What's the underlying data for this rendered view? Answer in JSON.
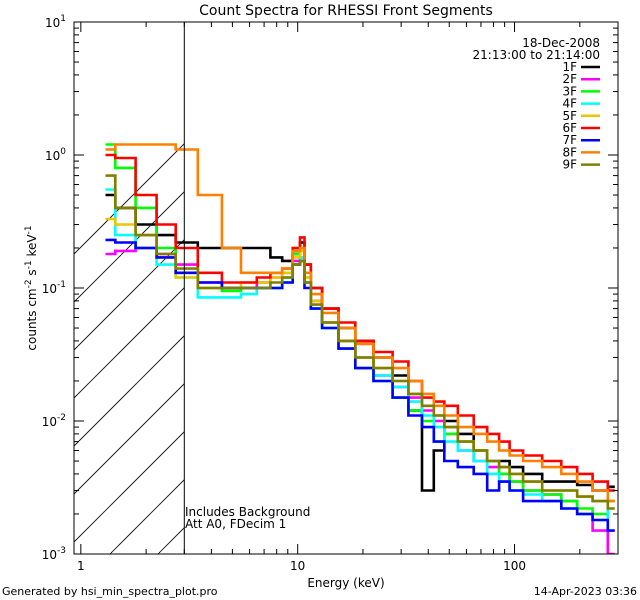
{
  "chart_data": {
    "type": "line",
    "title": "Count Spectra for RHESSI Front Segments",
    "xlabel": "Energy (keV)",
    "ylabel_main": "counts cm",
    "ylabel_exp1": "-2",
    "ylabel_mid": " s",
    "ylabel_exp2": "-1",
    "ylabel_unit": " keV",
    "ylabel_exp3": "-1",
    "xscale": "log",
    "yscale": "log",
    "xlim": [
      0.93,
      300
    ],
    "ylim": [
      0.001,
      10
    ],
    "x_ticks": [
      {
        "value": 1,
        "label": "1"
      },
      {
        "value": 10,
        "label": "10"
      },
      {
        "value": 100,
        "label": "100"
      }
    ],
    "y_ticks": [
      {
        "value": 0.001,
        "base": "10",
        "exp": "-3"
      },
      {
        "value": 0.01,
        "base": "10",
        "exp": "-2"
      },
      {
        "value": 0.1,
        "base": "10",
        "exp": "-1"
      },
      {
        "value": 1,
        "base": "10",
        "exp": "0"
      },
      {
        "value": 10,
        "base": "10",
        "exp": "1"
      }
    ],
    "legend_position": "top-right",
    "date": "18-Dec-2008",
    "time_range": "21:13:00 to 21:14:00",
    "excluded_region_keV": [
      0.93,
      3
    ],
    "annotation_line1": "Includes Background",
    "annotation_line2": "Att A0, FDecim 1",
    "series": [
      {
        "name": "1F",
        "color": "#000000",
        "x": [
          1.3,
          1.6,
          2,
          2.5,
          3,
          4,
          5,
          6,
          7,
          8,
          9,
          10,
          10.5,
          11,
          12,
          14,
          17,
          20,
          25,
          30,
          35,
          40,
          45,
          50,
          60,
          70,
          80,
          90,
          100,
          120,
          150,
          180,
          210,
          250,
          290
        ],
        "y": [
          0.5,
          0.4,
          0.3,
          0.25,
          0.22,
          0.2,
          0.2,
          0.2,
          0.2,
          0.17,
          0.16,
          0.18,
          0.22,
          0.15,
          0.1,
          0.07,
          0.05,
          0.04,
          0.03,
          0.022,
          0.012,
          0.003,
          0.006,
          0.01,
          0.008,
          0.006,
          0.005,
          0.005,
          0.0045,
          0.004,
          0.0035,
          0.0035,
          0.0033,
          0.003,
          0.0032
        ]
      },
      {
        "name": "2F",
        "color": "#ff00ff",
        "x": [
          1.3,
          1.6,
          2,
          2.5,
          3,
          4,
          5,
          6,
          7,
          8,
          9,
          10,
          10.5,
          11,
          12,
          14,
          17,
          20,
          25,
          30,
          35,
          40,
          45,
          50,
          60,
          70,
          80,
          90,
          100,
          120,
          150,
          180,
          210,
          250,
          290
        ],
        "y": [
          0.18,
          0.19,
          0.2,
          0.18,
          0.15,
          0.11,
          0.1,
          0.1,
          0.11,
          0.12,
          0.13,
          0.16,
          0.17,
          0.11,
          0.08,
          0.055,
          0.04,
          0.03,
          0.022,
          0.018,
          0.015,
          0.012,
          0.01,
          0.008,
          0.006,
          0.005,
          0.0045,
          0.004,
          0.0035,
          0.003,
          0.0028,
          0.0025,
          0.002,
          0.0015,
          0.001
        ]
      },
      {
        "name": "3F",
        "color": "#00ff00",
        "x": [
          1.3,
          1.6,
          2,
          2.5,
          3,
          4,
          5,
          6,
          7,
          8,
          9,
          10,
          10.5,
          11,
          12,
          14,
          17,
          20,
          25,
          30,
          35,
          40,
          45,
          50,
          60,
          70,
          80,
          90,
          100,
          120,
          150,
          180,
          210,
          250,
          290
        ],
        "y": [
          1.2,
          0.8,
          0.4,
          0.2,
          0.13,
          0.1,
          0.095,
          0.1,
          0.1,
          0.1,
          0.12,
          0.18,
          0.2,
          0.12,
          0.07,
          0.05,
          0.035,
          0.025,
          0.02,
          0.015,
          0.012,
          0.01,
          0.007,
          0.008,
          0.007,
          0.006,
          0.005,
          0.004,
          0.0035,
          0.003,
          0.0028,
          0.0025,
          0.0022,
          0.002,
          0.0025
        ]
      },
      {
        "name": "4F",
        "color": "#00ffff",
        "x": [
          1.3,
          1.6,
          2,
          2.5,
          3,
          4,
          5,
          6,
          7,
          8,
          9,
          10,
          10.5,
          11,
          12,
          14,
          17,
          20,
          25,
          30,
          35,
          40,
          45,
          50,
          60,
          70,
          80,
          90,
          100,
          120,
          150,
          180,
          210,
          250,
          290
        ],
        "y": [
          0.55,
          0.25,
          0.2,
          0.15,
          0.12,
          0.085,
          0.085,
          0.09,
          0.1,
          0.1,
          0.11,
          0.15,
          0.17,
          0.11,
          0.07,
          0.05,
          0.04,
          0.03,
          0.022,
          0.018,
          0.014,
          0.011,
          0.009,
          0.007,
          0.006,
          0.005,
          0.004,
          0.0035,
          0.003,
          0.0028,
          0.0025,
          0.0022,
          0.002,
          0.0018,
          0.0025
        ]
      },
      {
        "name": "5F",
        "color": "#e8c800",
        "x": [
          1.3,
          1.6,
          2,
          2.5,
          3,
          4,
          5,
          6,
          7,
          8,
          9,
          10,
          10.5,
          11,
          12,
          14,
          17,
          20,
          25,
          30,
          35,
          40,
          45,
          50,
          60,
          70,
          80,
          90,
          100,
          120,
          150,
          180,
          210,
          250,
          290
        ],
        "y": [
          0.33,
          0.3,
          0.25,
          0.17,
          0.12,
          0.1,
          0.1,
          0.11,
          0.11,
          0.12,
          0.13,
          0.17,
          0.19,
          0.12,
          0.08,
          0.055,
          0.04,
          0.03,
          0.025,
          0.02,
          0.016,
          0.013,
          0.011,
          0.009,
          0.007,
          0.006,
          0.005,
          0.0045,
          0.004,
          0.0035,
          0.003,
          0.003,
          0.0027,
          0.0025,
          0.0025
        ]
      },
      {
        "name": "6F",
        "color": "#ff0000",
        "x": [
          1.3,
          1.6,
          2,
          2.5,
          3,
          4,
          5,
          6,
          7,
          8,
          9,
          10,
          10.5,
          11,
          12,
          14,
          17,
          20,
          25,
          30,
          35,
          40,
          45,
          50,
          60,
          70,
          80,
          90,
          100,
          120,
          150,
          180,
          210,
          250,
          290
        ],
        "y": [
          1.0,
          0.95,
          0.5,
          0.3,
          0.2,
          0.13,
          0.11,
          0.11,
          0.12,
          0.13,
          0.14,
          0.2,
          0.24,
          0.15,
          0.1,
          0.07,
          0.055,
          0.04,
          0.033,
          0.028,
          0.02,
          0.015,
          0.014,
          0.013,
          0.011,
          0.009,
          0.008,
          0.007,
          0.006,
          0.0055,
          0.005,
          0.0045,
          0.004,
          0.0035,
          0.003
        ]
      },
      {
        "name": "7F",
        "color": "#0000ff",
        "x": [
          1.3,
          1.6,
          2,
          2.5,
          3,
          4,
          5,
          6,
          7,
          8,
          9,
          10,
          10.5,
          11,
          12,
          14,
          17,
          20,
          25,
          30,
          35,
          40,
          45,
          50,
          60,
          70,
          80,
          90,
          100,
          120,
          150,
          180,
          210,
          250,
          290
        ],
        "y": [
          0.23,
          0.22,
          0.2,
          0.17,
          0.13,
          0.11,
          0.1,
          0.1,
          0.1,
          0.1,
          0.11,
          0.15,
          0.16,
          0.1,
          0.07,
          0.05,
          0.035,
          0.025,
          0.02,
          0.015,
          0.011,
          0.009,
          0.007,
          0.005,
          0.0045,
          0.004,
          0.003,
          0.0035,
          0.003,
          0.0025,
          0.0025,
          0.0022,
          0.002,
          0.0018,
          0.0015
        ]
      },
      {
        "name": "8F",
        "color": "#ff8000",
        "x": [
          1.3,
          1.6,
          2,
          2.5,
          3,
          4,
          5,
          6,
          7,
          8,
          9,
          10,
          10.5,
          11,
          12,
          14,
          17,
          20,
          25,
          30,
          35,
          40,
          45,
          50,
          60,
          70,
          80,
          90,
          100,
          120,
          150,
          180,
          210,
          250,
          290
        ],
        "y": [
          1.1,
          1.2,
          1.2,
          1.2,
          1.1,
          0.5,
          0.2,
          0.13,
          0.13,
          0.13,
          0.14,
          0.19,
          0.2,
          0.13,
          0.09,
          0.065,
          0.05,
          0.038,
          0.03,
          0.025,
          0.02,
          0.016,
          0.013,
          0.011,
          0.009,
          0.008,
          0.007,
          0.006,
          0.0055,
          0.005,
          0.0045,
          0.004,
          0.0035,
          0.003,
          0.0025
        ]
      },
      {
        "name": "9F",
        "color": "#808000",
        "x": [
          1.3,
          1.6,
          2,
          2.5,
          3,
          4,
          5,
          6,
          7,
          8,
          9,
          10,
          10.5,
          11,
          12,
          14,
          17,
          20,
          25,
          30,
          35,
          40,
          45,
          50,
          60,
          70,
          80,
          90,
          100,
          120,
          150,
          180,
          210,
          250,
          290
        ],
        "y": [
          0.7,
          0.4,
          0.25,
          0.18,
          0.14,
          0.1,
          0.1,
          0.1,
          0.1,
          0.11,
          0.12,
          0.15,
          0.16,
          0.11,
          0.075,
          0.055,
          0.04,
          0.03,
          0.025,
          0.02,
          0.016,
          0.013,
          0.011,
          0.009,
          0.007,
          0.006,
          0.005,
          0.0045,
          0.004,
          0.0035,
          0.003,
          0.003,
          0.0027,
          0.0025,
          0.0022
        ]
      }
    ]
  },
  "footer": {
    "generated_by": "Generated by hsi_min_spectra_plot.pro",
    "timestamp": "14-Apr-2023 03:36"
  }
}
